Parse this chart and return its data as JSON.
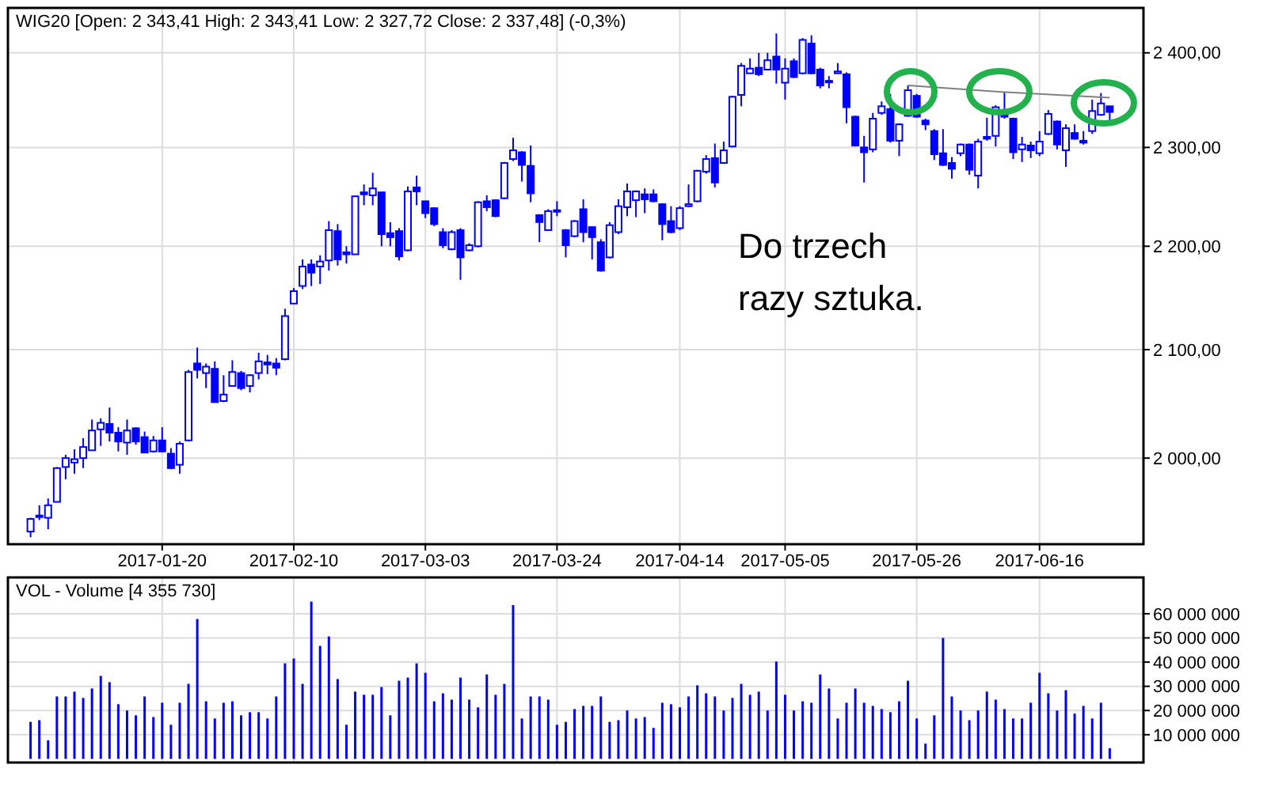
{
  "chart_data": [
    {
      "type": "candlestick",
      "title": "WIG20 [Open: 2 343,41  High: 2 343,41  Low: 2 327,72  Close: 2 337,48] (-0,3%)",
      "annotations": [
        "Do trzech\nrazy sztuka."
      ],
      "color": "#0000ff",
      "log": true,
      "grid": true,
      "categories": [
        null,
        null,
        null,
        null,
        null,
        null,
        null,
        null,
        null,
        null,
        null,
        null,
        null,
        null,
        null,
        "2017-01-20",
        null,
        null,
        null,
        null,
        null,
        null,
        null,
        null,
        null,
        null,
        null,
        null,
        null,
        null,
        "2017-02-10",
        null,
        null,
        null,
        null,
        null,
        null,
        null,
        null,
        null,
        null,
        null,
        null,
        null,
        null,
        "2017-03-03",
        null,
        null,
        null,
        null,
        null,
        null,
        null,
        null,
        null,
        null,
        null,
        null,
        null,
        null,
        "2017-03-24",
        null,
        null,
        null,
        null,
        null,
        null,
        null,
        null,
        null,
        null,
        null,
        null,
        null,
        "2017-04-14",
        null,
        null,
        null,
        null,
        null,
        null,
        null,
        null,
        null,
        null,
        null,
        "2017-05-05",
        null,
        null,
        null,
        null,
        null,
        null,
        null,
        null,
        null,
        null,
        null,
        null,
        null,
        null,
        "2017-05-26",
        null,
        null,
        null,
        null,
        null,
        null,
        null,
        null,
        null,
        null,
        null,
        null,
        null,
        "2017-06-16",
        null,
        null,
        null,
        null,
        null,
        null,
        null,
        null
      ],
      "ylim": [
        1924,
        2449
      ],
      "yticks": [
        {
          "value": 2000,
          "label": "2 000,00"
        },
        {
          "value": 2100,
          "label": "2 100,00"
        },
        {
          "value": 2200,
          "label": "2 200,00"
        },
        {
          "value": 2300,
          "label": "2 300,00"
        },
        {
          "value": 2400,
          "label": "2 400,00"
        }
      ],
      "ohlc": [
        [
          1935,
          1947,
          1930,
          1946
        ],
        [
          1948,
          1958,
          1945,
          1949
        ],
        [
          1947,
          1964,
          1937,
          1958
        ],
        [
          1961,
          1992,
          1961,
          1991
        ],
        [
          1992,
          2003,
          1981,
          2000
        ],
        [
          1996,
          2008,
          1986,
          1999
        ],
        [
          2000,
          2018,
          1991,
          2010
        ],
        [
          2007,
          2035,
          2007,
          2025
        ],
        [
          2026,
          2036,
          2011,
          2032
        ],
        [
          2031,
          2046,
          2015,
          2023
        ],
        [
          2023,
          2028,
          2006,
          2015
        ],
        [
          2014,
          2035,
          2003,
          2025
        ],
        [
          2027,
          2028,
          2012,
          2015
        ],
        [
          2019,
          2024,
          2005,
          2005
        ],
        [
          2006,
          2020,
          2005,
          2016
        ],
        [
          2016,
          2028,
          2005,
          2006
        ],
        [
          2004,
          2009,
          1990,
          1991
        ],
        [
          1994,
          2015,
          1986,
          2013
        ],
        [
          2016,
          2081,
          2015,
          2079
        ],
        [
          2087,
          2102,
          2073,
          2081
        ],
        [
          2078,
          2087,
          2064,
          2084
        ],
        [
          2082,
          2089,
          2051,
          2051
        ],
        [
          2052,
          2076,
          2051,
          2058
        ],
        [
          2066,
          2090,
          2066,
          2079
        ],
        [
          2078,
          2080,
          2062,
          2064
        ],
        [
          2066,
          2077,
          2060,
          2076
        ],
        [
          2078,
          2097,
          2072,
          2089
        ],
        [
          2088,
          2095,
          2077,
          2086
        ],
        [
          2087,
          2092,
          2076,
          2083
        ],
        [
          2091,
          2139,
          2090,
          2132
        ],
        [
          2144,
          2159,
          2144,
          2156
        ],
        [
          2161,
          2187,
          2158,
          2180
        ],
        [
          2182,
          2187,
          2161,
          2174
        ],
        [
          2180,
          2191,
          2163,
          2185
        ],
        [
          2186,
          2225,
          2176,
          2216
        ],
        [
          2215,
          2222,
          2181,
          2187
        ],
        [
          2194,
          2200,
          2183,
          2192
        ],
        [
          2192,
          2250,
          2192,
          2250
        ],
        [
          2254,
          2262,
          2241,
          2252
        ],
        [
          2251,
          2274,
          2241,
          2258
        ],
        [
          2254,
          2254,
          2200,
          2212
        ],
        [
          2213,
          2224,
          2200,
          2209
        ],
        [
          2215,
          2218,
          2186,
          2190
        ],
        [
          2196,
          2260,
          2195,
          2255
        ],
        [
          2259,
          2271,
          2241,
          2255
        ],
        [
          2245,
          2245,
          2228,
          2233
        ],
        [
          2238,
          2239,
          2220,
          2222
        ],
        [
          2214,
          2218,
          2198,
          2201
        ],
        [
          2197,
          2216,
          2196,
          2214
        ],
        [
          2216,
          2218,
          2167,
          2189
        ],
        [
          2196,
          2203,
          2195,
          2201
        ],
        [
          2200,
          2245,
          2199,
          2244
        ],
        [
          2245,
          2251,
          2235,
          2239
        ],
        [
          2246,
          2247,
          2229,
          2230
        ],
        [
          2248,
          2285,
          2247,
          2284
        ],
        [
          2288,
          2310,
          2286,
          2297
        ],
        [
          2295,
          2296,
          2265,
          2282
        ],
        [
          2281,
          2302,
          2244,
          2253
        ],
        [
          2231,
          2232,
          2204,
          2224
        ],
        [
          2216,
          2237,
          2216,
          2235
        ],
        [
          2235,
          2245,
          2230,
          2236
        ],
        [
          2216,
          2217,
          2189,
          2201
        ],
        [
          2210,
          2226,
          2209,
          2225
        ],
        [
          2237,
          2247,
          2204,
          2214
        ],
        [
          2219,
          2220,
          2187,
          2209
        ],
        [
          2204,
          2207,
          2175,
          2176
        ],
        [
          2189,
          2224,
          2188,
          2221
        ],
        [
          2214,
          2247,
          2212,
          2240
        ],
        [
          2239,
          2263,
          2230,
          2255
        ],
        [
          2246,
          2256,
          2229,
          2255
        ],
        [
          2252,
          2258,
          2233,
          2247
        ],
        [
          2252,
          2257,
          2244,
          2245
        ],
        [
          2242,
          2243,
          2206,
          2222
        ],
        [
          2225,
          2240,
          2213,
          2214
        ],
        [
          2218,
          2240,
          2216,
          2238
        ],
        [
          2240,
          2262,
          2239,
          2242
        ],
        [
          2245,
          2277,
          2244,
          2276
        ],
        [
          2275,
          2292,
          2273,
          2288
        ],
        [
          2289,
          2304,
          2259,
          2264
        ],
        [
          2284,
          2306,
          2283,
          2297
        ],
        [
          2301,
          2354,
          2300,
          2353
        ],
        [
          2355,
          2389,
          2343,
          2386
        ],
        [
          2378,
          2394,
          2378,
          2383
        ],
        [
          2384,
          2400,
          2375,
          2377
        ],
        [
          2382,
          2400,
          2381,
          2392
        ],
        [
          2396,
          2421,
          2367,
          2382
        ],
        [
          2368,
          2394,
          2350,
          2383
        ],
        [
          2391,
          2394,
          2373,
          2374
        ],
        [
          2378,
          2416,
          2377,
          2414
        ],
        [
          2410,
          2419,
          2377,
          2378
        ],
        [
          2382,
          2384,
          2362,
          2365
        ],
        [
          2370,
          2375,
          2362,
          2369
        ],
        [
          2378,
          2389,
          2378,
          2380
        ],
        [
          2377,
          2379,
          2325,
          2342
        ],
        [
          2332,
          2333,
          2301,
          2302
        ],
        [
          2300,
          2312,
          2264,
          2295
        ],
        [
          2298,
          2336,
          2295,
          2330
        ],
        [
          2336,
          2348,
          2334,
          2343
        ],
        [
          2340,
          2356,
          2305,
          2307
        ],
        [
          2307,
          2325,
          2291,
          2324
        ],
        [
          2333,
          2365,
          2332,
          2360
        ],
        [
          2354,
          2356,
          2331,
          2332
        ],
        [
          2328,
          2330,
          2318,
          2324
        ],
        [
          2317,
          2319,
          2287,
          2293
        ],
        [
          2294,
          2319,
          2281,
          2282
        ],
        [
          2284,
          2290,
          2268,
          2278
        ],
        [
          2294,
          2304,
          2291,
          2303
        ],
        [
          2303,
          2304,
          2272,
          2277
        ],
        [
          2271,
          2309,
          2258,
          2306
        ],
        [
          2311,
          2331,
          2307,
          2309
        ],
        [
          2312,
          2344,
          2301,
          2342
        ],
        [
          2336,
          2358,
          2330,
          2332
        ],
        [
          2330,
          2331,
          2288,
          2295
        ],
        [
          2298,
          2311,
          2285,
          2303
        ],
        [
          2302,
          2306,
          2289,
          2297
        ],
        [
          2294,
          2317,
          2291,
          2306
        ],
        [
          2314,
          2339,
          2313,
          2335
        ],
        [
          2327,
          2328,
          2298,
          2303
        ],
        [
          2297,
          2324,
          2280,
          2320
        ],
        [
          2315,
          2324,
          2308,
          2309
        ],
        [
          2307,
          2317,
          2303,
          2305
        ],
        [
          2317,
          2350,
          2314,
          2338
        ],
        [
          2334,
          2357,
          2333,
          2346
        ],
        [
          2343,
          2343,
          2328,
          2337
        ]
      ],
      "series": [
        {
          "type": "line",
          "color": "#808080",
          "values": [
            null,
            null,
            null,
            null,
            null,
            null,
            null,
            null,
            null,
            null,
            null,
            null,
            null,
            null,
            null,
            null,
            null,
            null,
            null,
            null,
            null,
            null,
            null,
            null,
            null,
            null,
            null,
            null,
            null,
            null,
            null,
            null,
            null,
            null,
            null,
            null,
            null,
            null,
            null,
            null,
            null,
            null,
            null,
            null,
            null,
            null,
            null,
            null,
            null,
            null,
            null,
            null,
            null,
            null,
            null,
            null,
            null,
            null,
            null,
            null,
            null,
            null,
            null,
            null,
            null,
            null,
            null,
            null,
            null,
            null,
            null,
            null,
            null,
            null,
            null,
            null,
            null,
            null,
            null,
            null,
            null,
            null,
            null,
            null,
            null,
            null,
            null,
            null,
            null,
            null,
            null,
            null,
            null,
            null,
            null,
            null,
            null,
            null,
            null,
            null,
            2365,
            null,
            null,
            null,
            null,
            null,
            null,
            null,
            null,
            null,
            null,
            2358,
            null,
            null,
            null,
            null,
            null,
            null,
            null,
            null,
            null,
            null,
            null,
            2352
          ]
        }
      ]
    },
    {
      "type": "bar",
      "title": "VOL - Volume [4 355 730]",
      "color": "#0000ff",
      "grid": true,
      "tick_labels": "y",
      "categories": [
        null,
        null,
        null,
        null,
        null,
        null,
        null,
        null,
        null,
        null,
        null,
        null,
        null,
        null,
        null,
        "2017-01-20",
        null,
        null,
        null,
        null,
        null,
        null,
        null,
        null,
        null,
        null,
        null,
        null,
        null,
        null,
        "2017-02-10",
        null,
        null,
        null,
        null,
        null,
        null,
        null,
        null,
        null,
        null,
        null,
        null,
        null,
        null,
        "2017-03-03",
        null,
        null,
        null,
        null,
        null,
        null,
        null,
        null,
        null,
        null,
        null,
        null,
        null,
        null,
        "2017-03-24",
        null,
        null,
        null,
        null,
        null,
        null,
        null,
        null,
        null,
        null,
        null,
        null,
        null,
        "2017-04-14",
        null,
        null,
        null,
        null,
        null,
        null,
        null,
        null,
        null,
        null,
        null,
        "2017-05-05",
        null,
        null,
        null,
        null,
        null,
        null,
        null,
        null,
        null,
        null,
        null,
        null,
        null,
        null,
        "2017-05-26",
        null,
        null,
        null,
        null,
        null,
        null,
        null,
        null,
        null,
        null,
        null,
        null,
        null,
        "2017-06-16",
        null,
        null,
        null,
        null,
        null,
        null,
        null,
        null
      ],
      "ylim": [
        -1500000,
        75000000
      ],
      "yticks": [
        {
          "value": 10000000,
          "label": "10 000 000"
        },
        {
          "value": 20000000,
          "label": "20 000 000"
        },
        {
          "value": 30000000,
          "label": "30 000 000"
        },
        {
          "value": 40000000,
          "label": "40 000 000"
        },
        {
          "value": 50000000,
          "label": "50 000 000"
        },
        {
          "value": 60000000,
          "label": "60 000 000"
        }
      ],
      "values": [
        15300000,
        16000000,
        7700000,
        25800000,
        25800000,
        27800000,
        25200000,
        29100000,
        34300000,
        31700000,
        22600000,
        20000000,
        18000000,
        25800000,
        17300000,
        23200000,
        14100000,
        23200000,
        31000000,
        57800000,
        23800000,
        16700000,
        23200000,
        23800000,
        18000000,
        19300000,
        19300000,
        16700000,
        25800000,
        39500000,
        41500000,
        31000000,
        65000000,
        46700000,
        50600000,
        33000000,
        14100000,
        27800000,
        26500000,
        26500000,
        29700000,
        18000000,
        32300000,
        33600000,
        39500000,
        35600000,
        23800000,
        27100000,
        24500000,
        33600000,
        24500000,
        21300000,
        34900000,
        26500000,
        31000000,
        63600000,
        16700000,
        25800000,
        25800000,
        24500000,
        14100000,
        15300000,
        20600000,
        21900000,
        21900000,
        25800000,
        15300000,
        16000000,
        20000000,
        16700000,
        17300000,
        12800000,
        23200000,
        22600000,
        21300000,
        25800000,
        30400000,
        27100000,
        25800000,
        20000000,
        25200000,
        31000000,
        26500000,
        27800000,
        20000000,
        40200000,
        26500000,
        20000000,
        23800000,
        23200000,
        34900000,
        29100000,
        16700000,
        23200000,
        29100000,
        23200000,
        21900000,
        20600000,
        19300000,
        23800000,
        32300000,
        16700000,
        6300000,
        18000000,
        50000000,
        25800000,
        20000000,
        16000000,
        20000000,
        27800000,
        24500000,
        20600000,
        16700000,
        16700000,
        23200000,
        35600000,
        27100000,
        20000000,
        28400000,
        18700000,
        21900000,
        16700000,
        23200000,
        4400000
      ]
    }
  ]
}
